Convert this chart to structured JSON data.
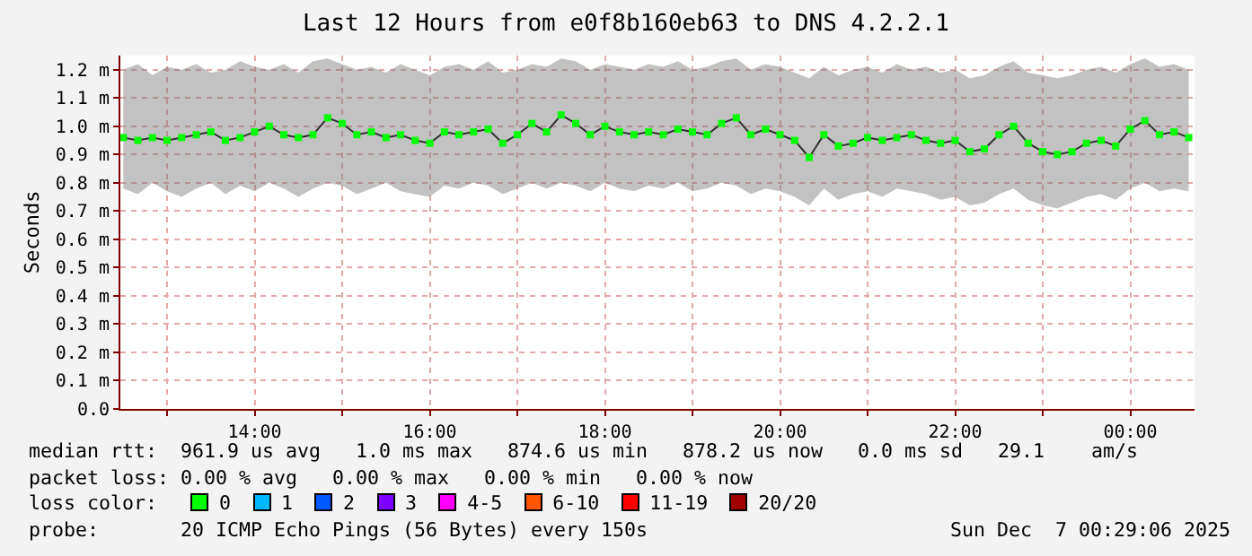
{
  "chart_data": {
    "type": "line",
    "title": "Last 12 Hours from e0f8b160eb63 to DNS 4.2.2.1",
    "ylabel": "Seconds",
    "x": [
      "2025-12-06T12:30",
      "2025-12-06T12:40",
      "2025-12-06T12:50",
      "2025-12-06T13:00",
      "2025-12-06T13:10",
      "2025-12-06T13:20",
      "2025-12-06T13:30",
      "2025-12-06T13:40",
      "2025-12-06T13:50",
      "2025-12-06T14:00",
      "2025-12-06T14:10",
      "2025-12-06T14:20",
      "2025-12-06T14:30",
      "2025-12-06T14:40",
      "2025-12-06T14:50",
      "2025-12-06T15:00",
      "2025-12-06T15:10",
      "2025-12-06T15:20",
      "2025-12-06T15:30",
      "2025-12-06T15:40",
      "2025-12-06T15:50",
      "2025-12-06T16:00",
      "2025-12-06T16:10",
      "2025-12-06T16:20",
      "2025-12-06T16:30",
      "2025-12-06T16:40",
      "2025-12-06T16:50",
      "2025-12-06T17:00",
      "2025-12-06T17:10",
      "2025-12-06T17:20",
      "2025-12-06T17:30",
      "2025-12-06T17:40",
      "2025-12-06T17:50",
      "2025-12-06T18:00",
      "2025-12-06T18:10",
      "2025-12-06T18:20",
      "2025-12-06T18:30",
      "2025-12-06T18:40",
      "2025-12-06T18:50",
      "2025-12-06T19:00",
      "2025-12-06T19:10",
      "2025-12-06T19:20",
      "2025-12-06T19:30",
      "2025-12-06T19:40",
      "2025-12-06T19:50",
      "2025-12-06T20:00",
      "2025-12-06T20:10",
      "2025-12-06T20:20",
      "2025-12-06T20:30",
      "2025-12-06T20:40",
      "2025-12-06T20:50",
      "2025-12-06T21:00",
      "2025-12-06T21:10",
      "2025-12-06T21:20",
      "2025-12-06T21:30",
      "2025-12-06T21:40",
      "2025-12-06T21:50",
      "2025-12-06T22:00",
      "2025-12-06T22:10",
      "2025-12-06T22:20",
      "2025-12-06T22:30",
      "2025-12-06T22:40",
      "2025-12-06T22:50",
      "2025-12-06T23:00",
      "2025-12-06T23:10",
      "2025-12-06T23:20",
      "2025-12-06T23:30",
      "2025-12-06T23:40",
      "2025-12-06T23:50",
      "2025-12-07T00:00",
      "2025-12-07T00:10",
      "2025-12-07T00:20",
      "2025-12-07T00:30",
      "2025-12-07T00:40"
    ],
    "series": [
      {
        "color": "#00ff00",
        "values": [
          0.96,
          0.95,
          0.96,
          0.95,
          0.96,
          0.97,
          0.98,
          0.95,
          0.96,
          0.98,
          1.0,
          0.97,
          0.96,
          0.97,
          1.03,
          1.01,
          0.97,
          0.98,
          0.96,
          0.97,
          0.95,
          0.94,
          0.98,
          0.97,
          0.98,
          0.99,
          0.94,
          0.97,
          1.01,
          0.98,
          1.04,
          1.01,
          0.97,
          1.0,
          0.98,
          0.97,
          0.98,
          0.97,
          0.99,
          0.98,
          0.97,
          1.01,
          1.03,
          0.97,
          0.99,
          0.97,
          0.95,
          0.89,
          0.97,
          0.93,
          0.94,
          0.96,
          0.95,
          0.96,
          0.97,
          0.95,
          0.94,
          0.95,
          0.91,
          0.92,
          0.97,
          1.0,
          0.94,
          0.91,
          0.9,
          0.91,
          0.94,
          0.95,
          0.93,
          0.99,
          1.02,
          0.97,
          0.98,
          0.96
        ],
        "lower": [
          0.78,
          0.76,
          0.8,
          0.77,
          0.75,
          0.78,
          0.8,
          0.76,
          0.79,
          0.77,
          0.8,
          0.78,
          0.75,
          0.78,
          0.8,
          0.79,
          0.76,
          0.78,
          0.8,
          0.77,
          0.76,
          0.75,
          0.79,
          0.78,
          0.8,
          0.79,
          0.76,
          0.78,
          0.8,
          0.78,
          0.8,
          0.79,
          0.77,
          0.8,
          0.78,
          0.77,
          0.79,
          0.78,
          0.8,
          0.77,
          0.78,
          0.8,
          0.79,
          0.76,
          0.78,
          0.77,
          0.75,
          0.72,
          0.78,
          0.74,
          0.76,
          0.77,
          0.75,
          0.78,
          0.77,
          0.76,
          0.74,
          0.75,
          0.72,
          0.73,
          0.76,
          0.78,
          0.74,
          0.72,
          0.71,
          0.73,
          0.75,
          0.76,
          0.74,
          0.78,
          0.8,
          0.77,
          0.78,
          0.77
        ],
        "upper": [
          1.2,
          1.22,
          1.18,
          1.21,
          1.2,
          1.22,
          1.19,
          1.2,
          1.23,
          1.21,
          1.2,
          1.22,
          1.19,
          1.23,
          1.24,
          1.22,
          1.2,
          1.21,
          1.19,
          1.22,
          1.2,
          1.18,
          1.21,
          1.22,
          1.2,
          1.23,
          1.19,
          1.2,
          1.22,
          1.21,
          1.24,
          1.23,
          1.2,
          1.22,
          1.21,
          1.2,
          1.22,
          1.21,
          1.23,
          1.2,
          1.21,
          1.23,
          1.24,
          1.2,
          1.22,
          1.21,
          1.19,
          1.17,
          1.21,
          1.18,
          1.2,
          1.21,
          1.19,
          1.22,
          1.2,
          1.21,
          1.19,
          1.2,
          1.17,
          1.18,
          1.21,
          1.23,
          1.19,
          1.18,
          1.17,
          1.18,
          1.2,
          1.21,
          1.19,
          1.22,
          1.24,
          1.21,
          1.22,
          1.2
        ]
      }
    ],
    "xlim": [
      "2025-12-06T12:28",
      "2025-12-07T00:44"
    ],
    "xticks": [
      {
        "value": "2025-12-06T13:00",
        "label": null
      },
      {
        "value": "2025-12-06T14:00",
        "label": "14:00"
      },
      {
        "value": "2025-12-06T15:00",
        "label": null
      },
      {
        "value": "2025-12-06T16:00",
        "label": "16:00"
      },
      {
        "value": "2025-12-06T17:00",
        "label": null
      },
      {
        "value": "2025-12-06T18:00",
        "label": "18:00"
      },
      {
        "value": "2025-12-06T19:00",
        "label": null
      },
      {
        "value": "2025-12-06T20:00",
        "label": "20:00"
      },
      {
        "value": "2025-12-06T21:00",
        "label": null
      },
      {
        "value": "2025-12-06T22:00",
        "label": "22:00"
      },
      {
        "value": "2025-12-06T23:00",
        "label": null
      },
      {
        "value": "2025-12-07T00:00",
        "label": "00:00"
      }
    ],
    "ylim": [
      0,
      1.25
    ],
    "yticks": [
      {
        "value": 0,
        "label": "0.0"
      },
      {
        "value": 0.1,
        "label": "0.1 m"
      },
      {
        "value": 0.2,
        "label": "0.2 m"
      },
      {
        "value": 0.3,
        "label": "0.3 m"
      },
      {
        "value": 0.4,
        "label": "0.4 m"
      },
      {
        "value": 0.5,
        "label": "0.5 m"
      },
      {
        "value": 0.6,
        "label": "0.6 m"
      },
      {
        "value": 0.7,
        "label": "0.7 m"
      },
      {
        "value": 0.8,
        "label": "0.8 m"
      },
      {
        "value": 0.9,
        "label": "0.9 m"
      },
      {
        "value": 1.0,
        "label": "1.0 m"
      },
      {
        "value": 1.1,
        "label": "1.1 m"
      },
      {
        "value": 1.2,
        "label": "1.2 m"
      }
    ],
    "grid": true,
    "marker": "square",
    "annotations": [
      "median rtt:  961.9 us avg   1.0 ms max   874.6 us min   878.2 us now   0.0 ms sd   29.1    am/s",
      "packet loss: 0.00 % avg   0.00 % max   0.00 % min   0.00 % now",
      "loss color:",
      "0",
      "1",
      "2",
      "3",
      "4-5",
      "6-10",
      "11-19",
      "20/20",
      "probe:       20 ICMP Echo Pings (56 Bytes) every 150s",
      "Sun Dec  7 00:29:06 2025"
    ]
  }
}
